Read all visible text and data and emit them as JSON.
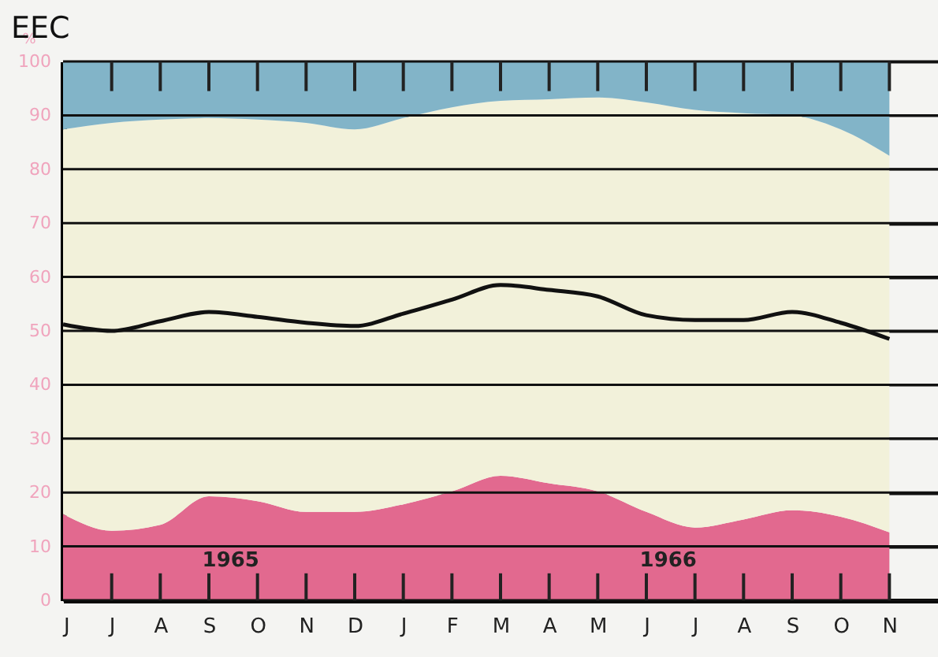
{
  "chart_data": {
    "type": "area",
    "title": "EEC",
    "ylabel": "%",
    "categories": [
      "J",
      "J",
      "A",
      "S",
      "O",
      "N",
      "D",
      "J",
      "F",
      "M",
      "A",
      "M",
      "J",
      "J",
      "A",
      "S",
      "O",
      "N"
    ],
    "stacked": true,
    "ylim": [
      0,
      100
    ],
    "yticks": [
      0,
      10,
      20,
      30,
      40,
      50,
      60,
      70,
      80,
      90,
      100
    ],
    "grid": "y",
    "annotations": [
      "1965",
      "1966"
    ],
    "series": [
      {
        "color": "#e2698f",
        "values": [
          16,
          12.9,
          14,
          19.3,
          18.4,
          16.4,
          16.4,
          17.8,
          20.2,
          23.1,
          21.7,
          20.2,
          16.4,
          13.5,
          15,
          16.7,
          15.5,
          12.6
        ]
      },
      {
        "color": "#f2f1da",
        "values": [
          71.4,
          75.7,
          75.2,
          70.2,
          70.8,
          72.2,
          71,
          71.7,
          71.3,
          69.6,
          71.3,
          73.1,
          76,
          77.5,
          75.4,
          73.3,
          71.9,
          69.9
        ]
      },
      {
        "color": "#82b4c8",
        "values": [
          12.6,
          11.4,
          10.8,
          10.5,
          10.8,
          11.4,
          12.6,
          10.5,
          8.5,
          7.3,
          7,
          6.7,
          7.6,
          9,
          9.6,
          10,
          12.6,
          17.5
        ]
      },
      {
        "type": "line",
        "color": "#111111",
        "values": [
          51.2,
          50,
          51.8,
          53.5,
          52.6,
          51.5,
          50.9,
          53.2,
          55.8,
          58.5,
          57.6,
          56.4,
          52.9,
          52,
          52,
          53.5,
          51.5,
          48.5
        ]
      }
    ]
  }
}
